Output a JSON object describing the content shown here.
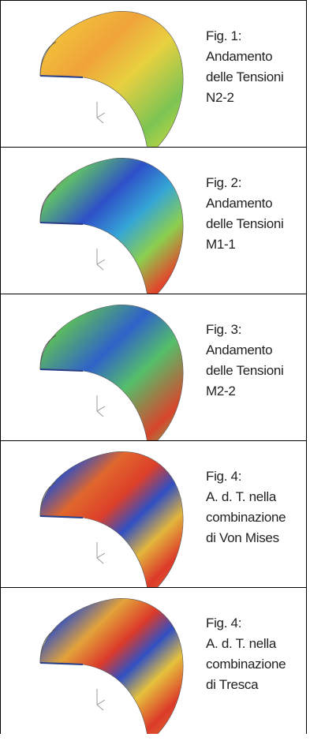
{
  "figures": [
    {
      "lines": [
        "Fig. 1:",
        "Andamento",
        "delle Tensioni",
        "N2-2"
      ]
    },
    {
      "lines": [
        "Fig. 2:",
        "Andamento",
        "delle Tensioni",
        "M1-1"
      ]
    },
    {
      "lines": [
        "Fig. 3:",
        "Andamento",
        "delle Tensioni",
        "M2-2"
      ]
    },
    {
      "lines": [
        "Fig. 4:",
        "A. d. T. nella",
        "combinazione",
        "di Von Mises"
      ]
    },
    {
      "lines": [
        "Fig. 4:",
        "A. d. T. nella",
        "combinazione",
        "di Tresca"
      ]
    }
  ]
}
